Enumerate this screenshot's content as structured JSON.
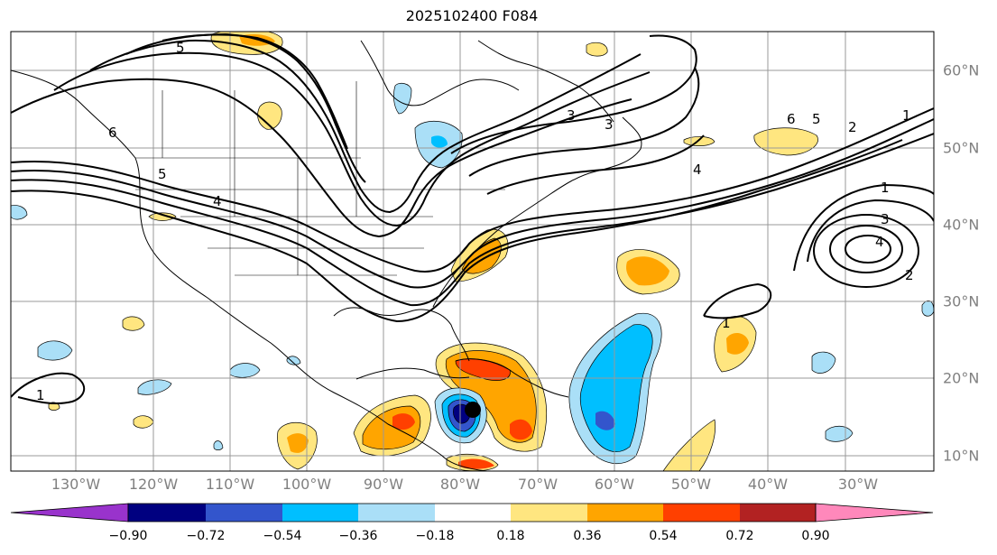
{
  "title": "2025102400 F084",
  "lon_labels": [
    "130°W",
    "120°W",
    "110°W",
    "100°W",
    "90°W",
    "80°W",
    "70°W",
    "60°W",
    "50°W",
    "40°W",
    "30°W"
  ],
  "lat_labels": [
    "60°N",
    "50°N",
    "40°N",
    "30°N",
    "20°N",
    "10°N"
  ],
  "colorbar": {
    "ticks": [
      "−0.90",
      "−0.72",
      "−0.54",
      "−0.36",
      "−0.18",
      "0.18",
      "0.36",
      "0.54",
      "0.72",
      "0.90"
    ],
    "colors": [
      "#9933cc",
      "#000080",
      "#3355cc",
      "#00bfff",
      "#aadff7",
      "#ffffff",
      "#ffe680",
      "#ffa500",
      "#ff4000",
      "#b22222",
      "#ff88bb"
    ]
  },
  "contour_labels": [
    "1",
    "2",
    "3",
    "4",
    "5",
    "6"
  ],
  "fill_colors": {
    "lightblue": "#aadff7",
    "blue": "#00bfff",
    "medblue": "#3355cc",
    "navy": "#000080",
    "yellow": "#ffe680",
    "orange": "#ffa500",
    "red": "#ff4000",
    "darkred": "#b22222"
  }
}
